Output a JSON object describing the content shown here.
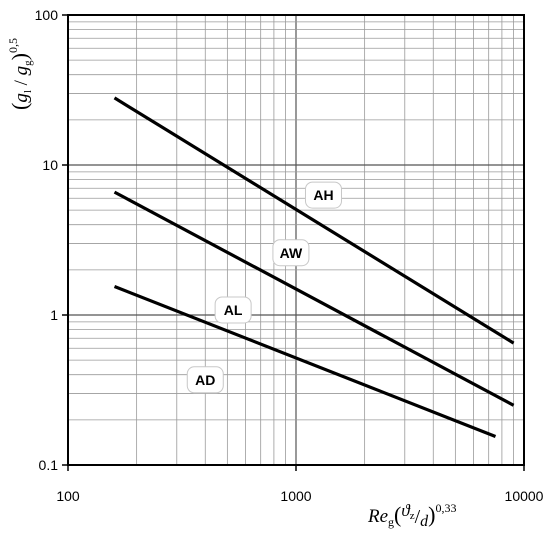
{
  "chart_data": {
    "type": "line",
    "x_scale": "log",
    "y_scale": "log",
    "xlim": [
      100,
      10000
    ],
    "ylim": [
      0.1,
      100
    ],
    "grid": true,
    "x_ticks": [
      "100",
      "1000",
      "10000"
    ],
    "y_ticks": [
      "0.1",
      "1",
      "10",
      "100"
    ],
    "xlabel": {
      "main": "Re",
      "main_sub": "g",
      "frac_num": "ϑ",
      "frac_num_sub": "z",
      "frac_sep": "/",
      "frac_den": "d",
      "exponent": "0,33"
    },
    "ylabel": {
      "num": "g",
      "num_sub": "l",
      "sep": "/",
      "den": "g",
      "den_sub": "g",
      "exponent": "0,5"
    },
    "series": [
      {
        "name": "AH",
        "x": [
          160,
          9000
        ],
        "y": [
          28,
          0.65
        ],
        "label_at": [
          1320,
          6.3
        ]
      },
      {
        "name": "AW",
        "x": [
          160,
          9000
        ],
        "y": [
          6.6,
          0.25
        ],
        "label_at": [
          950,
          2.6
        ]
      },
      {
        "name": "AL",
        "x": [
          160,
          7500
        ],
        "y": [
          1.55,
          0.155
        ],
        "label_at": [
          530,
          1.08
        ]
      },
      {
        "name": "AD",
        "x": [],
        "y": [],
        "label_at": [
          400,
          0.37
        ]
      }
    ]
  }
}
